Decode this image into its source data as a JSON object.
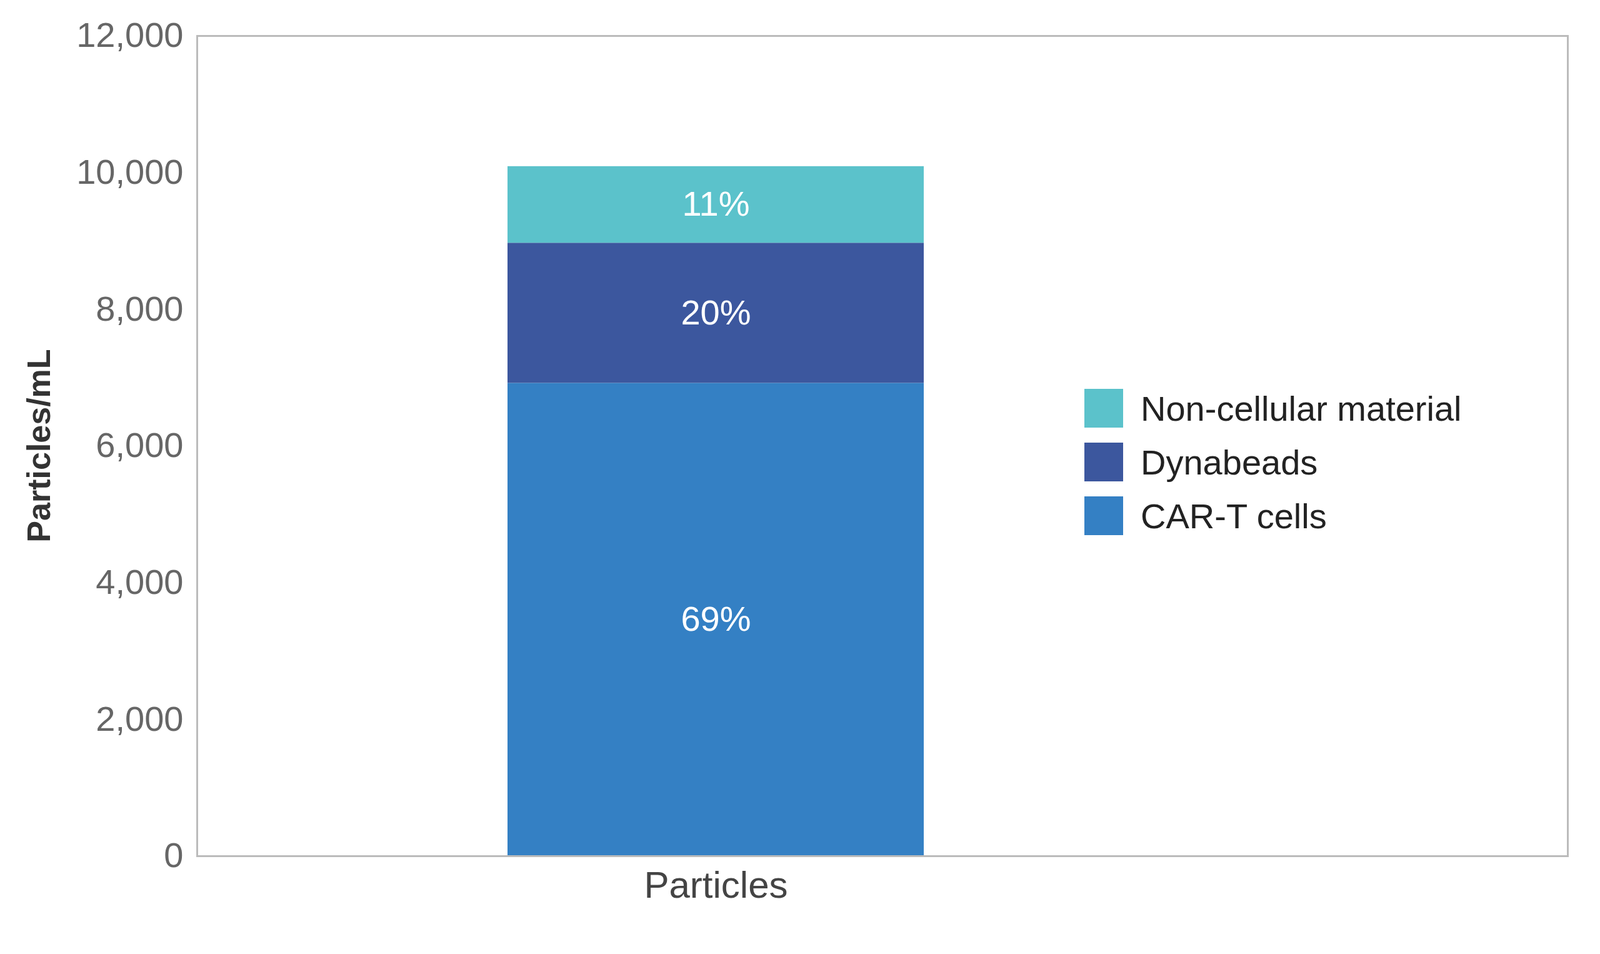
{
  "chart_data": {
    "type": "bar",
    "stacked": true,
    "ylabel": "Particles/mL",
    "categories": [
      "Particles"
    ],
    "series": [
      {
        "name": "CAR-T cells",
        "color": "#3480c4",
        "values": [
          6920
        ],
        "percent_labels": [
          "69%"
        ]
      },
      {
        "name": "Dynabeads",
        "color": "#3c579e",
        "values": [
          2050
        ],
        "percent_labels": [
          "20%"
        ]
      },
      {
        "name": "Non-cellular material",
        "color": "#5bc2cb",
        "values": [
          1120
        ],
        "percent_labels": [
          "11%"
        ]
      }
    ],
    "ylim": [
      0,
      12000
    ],
    "yticks": [
      0,
      {
        "value": 2000,
        "label": "2,000"
      },
      {
        "value": 4000,
        "label": "4,000"
      },
      {
        "value": 6000,
        "label": "6,000"
      },
      {
        "value": 8000,
        "label": "8,000"
      },
      {
        "value": 10000,
        "label": "10,000"
      },
      {
        "value": 12000,
        "label": "12,000"
      }
    ],
    "grid": false,
    "legend": "right"
  }
}
